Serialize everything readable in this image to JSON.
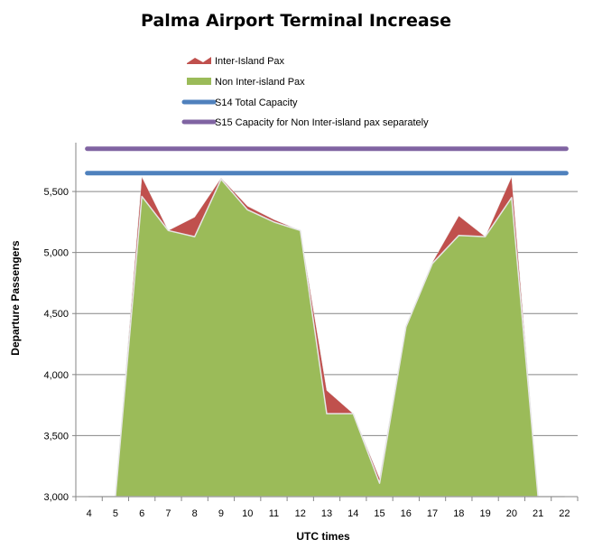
{
  "chart_data": {
    "type": "area",
    "title": "Palma Airport Terminal Increase",
    "xlabel": "UTC times",
    "ylabel": "Departure Passengers",
    "x": [
      4,
      5,
      6,
      7,
      8,
      9,
      10,
      11,
      12,
      13,
      14,
      15,
      16,
      17,
      18,
      19,
      20,
      21,
      22
    ],
    "ylim": [
      3000,
      5900
    ],
    "yticks": [
      3000,
      3500,
      4000,
      4500,
      5000,
      5500
    ],
    "ytick_labels": [
      "3,000",
      "3,500",
      "4,000",
      "4,500",
      "5,000",
      "5,500"
    ],
    "grid": "horizontal",
    "legend_position": "top",
    "series": [
      {
        "name": "Inter-Island Pax",
        "kind": "area",
        "color": "#c0504d",
        "values": [
          3000,
          3000,
          5620,
          5180,
          5290,
          5610,
          5380,
          5270,
          5180,
          3870,
          3680,
          3150,
          4400,
          4920,
          5300,
          5130,
          5620,
          3000,
          3000
        ]
      },
      {
        "name": "Non Inter-island Pax",
        "kind": "area",
        "color": "#9bbb59",
        "values": [
          3000,
          3000,
          5460,
          5180,
          5130,
          5600,
          5350,
          5250,
          5180,
          3680,
          3680,
          3110,
          4390,
          4910,
          5140,
          5130,
          5450,
          3000,
          3000
        ]
      },
      {
        "name": "S14 Total Capacity",
        "kind": "line",
        "color": "#4f81bd",
        "value": 5650
      },
      {
        "name": "S15 Capacity for Non Inter-island pax separately",
        "kind": "line",
        "color": "#8064a2",
        "value": 5850
      }
    ]
  }
}
